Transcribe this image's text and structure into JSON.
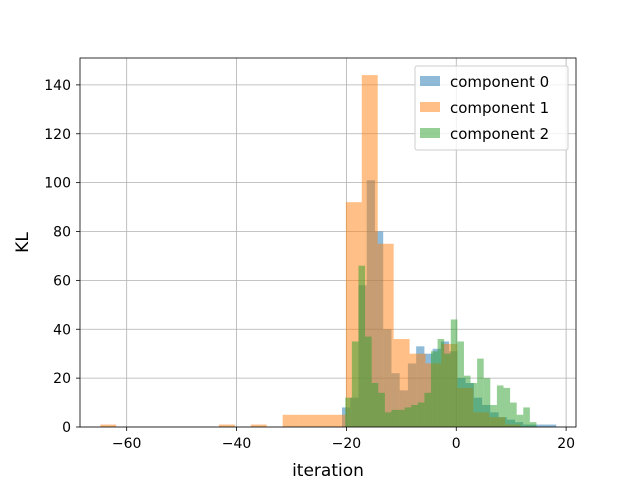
{
  "chart_data": {
    "type": "bar",
    "subtype": "overlapping-histogram",
    "title": "",
    "xlabel": "iteration",
    "ylabel": "KL",
    "xlim": [
      -68.5,
      21.8
    ],
    "ylim": [
      0,
      151
    ],
    "x_ticks": [
      -60,
      -40,
      -20,
      0,
      20
    ],
    "y_ticks": [
      0,
      20,
      40,
      60,
      80,
      100,
      120,
      140
    ],
    "grid": true,
    "legend_placement": "top-right",
    "bar_alpha": 0.5,
    "series": [
      {
        "name": "component 0",
        "color": "#1f77b4",
        "bins": [
          [
            -20.8,
            -19.3,
            8
          ],
          [
            -19.3,
            -17.8,
            12
          ],
          [
            -17.8,
            -16.3,
            58
          ],
          [
            -16.3,
            -14.8,
            101
          ],
          [
            -14.8,
            -13.3,
            80
          ],
          [
            -13.3,
            -11.8,
            40
          ],
          [
            -11.8,
            -10.3,
            22
          ],
          [
            -10.3,
            -8.8,
            15
          ],
          [
            -8.8,
            -7.3,
            26
          ],
          [
            -7.3,
            -5.8,
            33
          ],
          [
            -5.8,
            -4.3,
            30
          ],
          [
            -4.3,
            -2.8,
            32
          ],
          [
            -2.8,
            -1.3,
            35
          ],
          [
            -1.3,
            0.2,
            31
          ],
          [
            0.2,
            1.7,
            20
          ],
          [
            1.7,
            3.2,
            18
          ],
          [
            3.2,
            4.7,
            12
          ],
          [
            4.7,
            6.2,
            9
          ],
          [
            6.2,
            7.7,
            6
          ],
          [
            7.7,
            9.2,
            4
          ],
          [
            9.2,
            10.7,
            3
          ],
          [
            10.7,
            12.2,
            2
          ],
          [
            12.2,
            13.7,
            1
          ],
          [
            13.7,
            15.2,
            1
          ],
          [
            15.2,
            16.7,
            1
          ],
          [
            16.7,
            18.2,
            1
          ]
        ]
      },
      {
        "name": "component 1",
        "color": "#ff7f0e",
        "bins": [
          [
            -64.8,
            -61.9,
            1
          ],
          [
            -43.2,
            -40.3,
            1
          ],
          [
            -37.4,
            -34.5,
            1
          ],
          [
            -31.6,
            -28.7,
            5
          ],
          [
            -28.7,
            -25.8,
            5
          ],
          [
            -25.8,
            -22.9,
            5
          ],
          [
            -22.9,
            -20.1,
            5
          ],
          [
            -20.1,
            -17.2,
            92
          ],
          [
            -17.2,
            -14.3,
            144
          ],
          [
            -14.3,
            -11.4,
            75
          ],
          [
            -11.4,
            -8.5,
            36
          ],
          [
            -8.5,
            -5.6,
            30
          ],
          [
            -5.6,
            -2.7,
            26
          ],
          [
            -2.7,
            0.2,
            34
          ],
          [
            0.2,
            3.1,
            16
          ],
          [
            3.1,
            6.0,
            6
          ],
          [
            6.0,
            8.9,
            4
          ],
          [
            8.9,
            11.7,
            1
          ]
        ]
      },
      {
        "name": "component 2",
        "color": "#2ca02c",
        "bins": [
          [
            -20.2,
            -19.0,
            12
          ],
          [
            -19.0,
            -17.8,
            35
          ],
          [
            -17.8,
            -16.6,
            66
          ],
          [
            -16.6,
            -15.4,
            37
          ],
          [
            -15.4,
            -14.2,
            18
          ],
          [
            -14.2,
            -13.0,
            14
          ],
          [
            -13.0,
            -11.8,
            6
          ],
          [
            -11.8,
            -10.6,
            7
          ],
          [
            -10.6,
            -9.4,
            7
          ],
          [
            -9.4,
            -8.2,
            8
          ],
          [
            -8.2,
            -7.0,
            9
          ],
          [
            -7.0,
            -5.8,
            10
          ],
          [
            -5.8,
            -4.6,
            14
          ],
          [
            -4.6,
            -3.4,
            31
          ],
          [
            -3.4,
            -2.2,
            36
          ],
          [
            -2.2,
            -1.0,
            30
          ],
          [
            -1.0,
            0.2,
            44
          ],
          [
            0.2,
            1.4,
            35
          ],
          [
            1.4,
            2.6,
            21
          ],
          [
            2.6,
            3.8,
            18
          ],
          [
            3.8,
            5.0,
            28
          ],
          [
            5.0,
            6.2,
            20
          ],
          [
            6.2,
            7.4,
            9
          ],
          [
            7.4,
            8.6,
            17
          ],
          [
            8.6,
            9.8,
            16
          ],
          [
            9.8,
            11.0,
            10
          ],
          [
            11.0,
            12.2,
            5
          ],
          [
            12.2,
            13.4,
            8
          ],
          [
            13.4,
            14.6,
            2
          ]
        ]
      }
    ]
  }
}
